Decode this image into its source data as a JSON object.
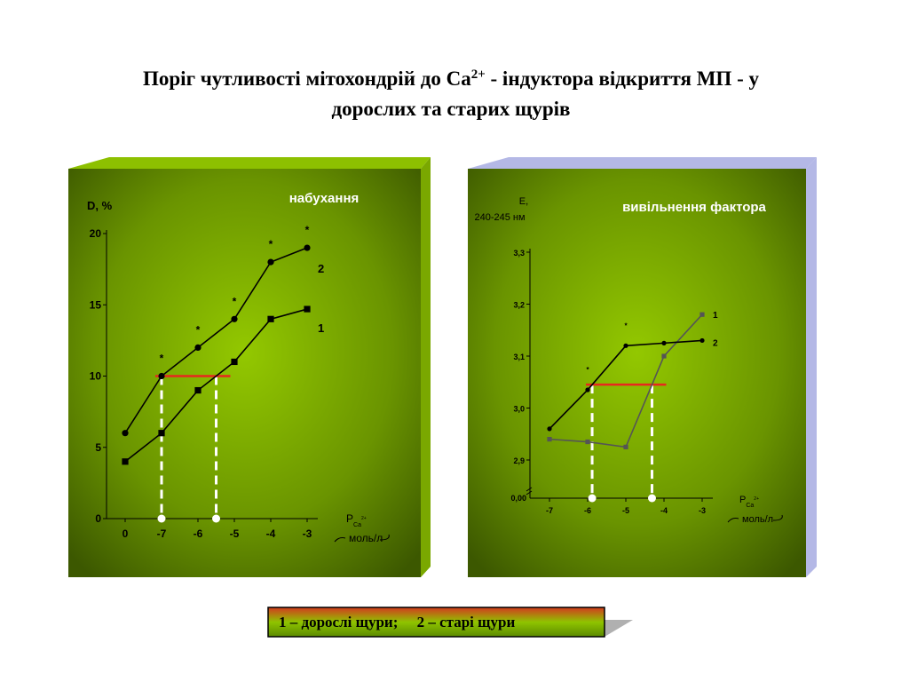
{
  "title_parts": [
    "Поріг чутливості мітохондрій до Ca",
    "2+",
    " - індуктора відкриття МП - у",
    "дорослих та старих щурів"
  ],
  "legend_text": "1 – дорослі щури;     2 – старі щури",
  "chart_data": [
    {
      "type": "line",
      "title": "набухання",
      "y_label": [
        "D, %"
      ],
      "x_label": "P",
      "x_label_sub": "Ca",
      "x_label_sup": "2+",
      "x_unit": "моль/л",
      "categories": [
        "0",
        "-7",
        "-6",
        "-5",
        "-4",
        "-3"
      ],
      "ylim": [
        0,
        20
      ],
      "yticks": [
        0,
        5,
        10,
        15,
        20
      ],
      "threshold": 10,
      "threshold_color": "#e8281e",
      "significance": [
        null,
        "*",
        "*",
        "*",
        "*",
        "*"
      ],
      "series": [
        {
          "name": "1",
          "color": "#000000",
          "marker": "square",
          "values": [
            4,
            6,
            9,
            11,
            14,
            14.7
          ]
        },
        {
          "name": "2",
          "color": "#000000",
          "marker": "circle",
          "values": [
            6,
            10,
            12,
            14,
            18,
            19
          ]
        }
      ]
    },
    {
      "type": "line",
      "title": "вивільнення фактора",
      "y_label": [
        "E,",
        "240-245 нм"
      ],
      "x_label": "P",
      "x_label_sub": "Ca",
      "x_label_sup": "2+",
      "x_unit": "моль/л",
      "categories": [
        "-7",
        "-6",
        "-5",
        "-4",
        "-3"
      ],
      "ylim": [
        2.9,
        3.3
      ],
      "yticks": [
        {
          "value": 2.9,
          "label": "2,9"
        },
        {
          "value": 3.0,
          "label": "3,0"
        },
        {
          "value": 3.1,
          "label": "3,1"
        },
        {
          "value": 3.2,
          "label": "3,2"
        },
        {
          "value": 3.3,
          "label": "3,3"
        }
      ],
      "y_break_label": "0,00",
      "threshold": 3.045,
      "threshold_color": "#e8281e",
      "significance": [
        null,
        "*",
        "*",
        null,
        null
      ],
      "series": [
        {
          "name": "1",
          "color": "#555555",
          "marker": "square",
          "values": [
            2.94,
            2.935,
            2.925,
            3.1,
            3.18
          ]
        },
        {
          "name": "2",
          "color": "#000000",
          "marker": "circle",
          "values": [
            2.96,
            3.035,
            3.12,
            3.125,
            3.13
          ]
        }
      ]
    }
  ]
}
